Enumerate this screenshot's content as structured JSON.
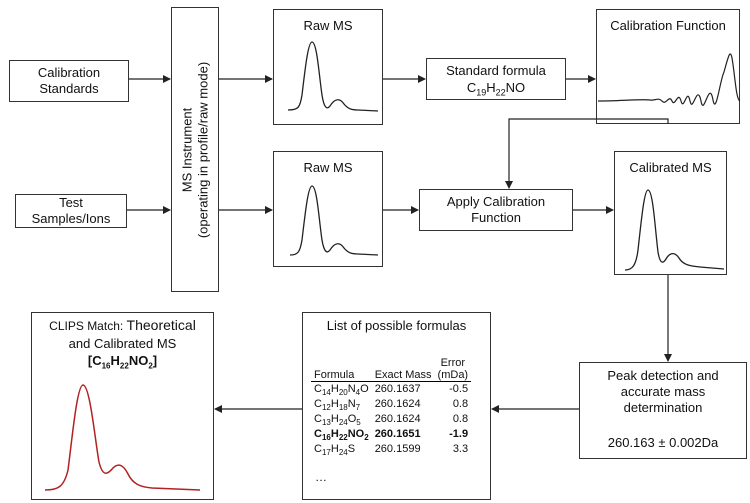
{
  "calibration_standards": "Calibration\nStandards",
  "test_samples": "Test\nSamples/Ions",
  "ms_instrument_line1": "MS Instrument",
  "ms_instrument_line2": "(operating in profile/raw mode)",
  "raw_ms_top": "Raw MS",
  "raw_ms_bottom": "Raw MS",
  "standard_formula_label": "Standard formula",
  "standard_formula": {
    "C": "C",
    "c_sub": "19",
    "H": "H",
    "h_sub": "22",
    "rest": "NO"
  },
  "calibration_function": "Calibration Function",
  "apply_calibration": "Apply Calibration\nFunction",
  "calibrated_ms": "Calibrated MS",
  "peak_detection": "Peak detection and\naccurate mass\ndetermination",
  "mass_result": "260.163 ± 0.002Da",
  "list_title": "List of possible formulas",
  "table": {
    "headers": [
      "Formula",
      "Exact Mass",
      "Error\n(mDa)"
    ],
    "rows": [
      {
        "formula": [
          [
            "C",
            ""
          ],
          [
            "14",
            "sub"
          ],
          [
            "H",
            ""
          ],
          [
            "20",
            "sub"
          ],
          [
            "N",
            ""
          ],
          [
            "4",
            "sub"
          ],
          [
            "O",
            ""
          ]
        ],
        "mass": "260.1637",
        "error": "-0.5",
        "bold": false
      },
      {
        "formula": [
          [
            "C",
            ""
          ],
          [
            "12",
            "sub"
          ],
          [
            "H",
            ""
          ],
          [
            "18",
            "sub"
          ],
          [
            "N",
            ""
          ],
          [
            "7",
            "sub"
          ]
        ],
        "mass": "260.1624",
        "error": "0.8",
        "bold": false
      },
      {
        "formula": [
          [
            "C",
            ""
          ],
          [
            "13",
            "sub"
          ],
          [
            "H",
            ""
          ],
          [
            "24",
            "sub"
          ],
          [
            "O",
            ""
          ],
          [
            "5",
            "sub"
          ]
        ],
        "mass": "260.1624",
        "error": "0.8",
        "bold": false
      },
      {
        "formula": [
          [
            "C",
            ""
          ],
          [
            "16",
            "sub"
          ],
          [
            "H",
            ""
          ],
          [
            "22",
            "sub"
          ],
          [
            "NO",
            ""
          ],
          [
            "2",
            "sub"
          ]
        ],
        "mass": "260.1651",
        "error": "-1.9",
        "bold": true
      },
      {
        "formula": [
          [
            "C",
            ""
          ],
          [
            "17",
            "sub"
          ],
          [
            "H",
            ""
          ],
          [
            "24",
            "sub"
          ],
          [
            "S",
            ""
          ]
        ],
        "mass": "260.1599",
        "error": "3.3",
        "bold": false
      }
    ],
    "ellipsis": "…"
  },
  "clips_prefix": "CLIPS Match: ",
  "clips_theoretical": "Theoretical",
  "clips_line2": "and Calibrated MS",
  "clips_formula": [
    [
      "[C",
      ""
    ],
    [
      "16",
      "sub"
    ],
    [
      "H",
      ""
    ],
    [
      "22",
      "sub"
    ],
    [
      "NO",
      ""
    ],
    [
      "2",
      "sub"
    ],
    [
      "]",
      ""
    ]
  ],
  "colors": {
    "border": "#333333",
    "line": "#222222",
    "match_curve": "#b22222"
  }
}
